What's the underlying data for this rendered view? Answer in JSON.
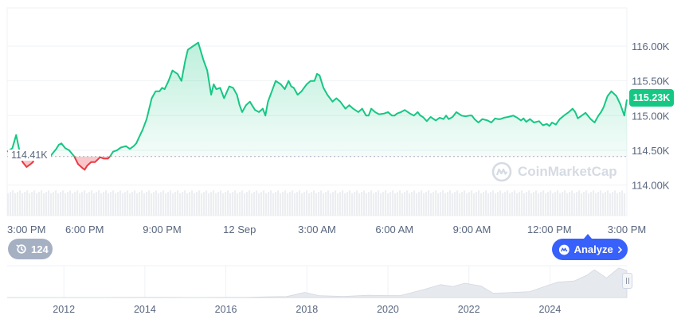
{
  "colors": {
    "up": "#16c784",
    "down": "#ea3943",
    "up_fill": "#16c784",
    "down_fill": "#ea3943",
    "grid": "#eff2f5",
    "axis_text": "#58667e",
    "volume": "#eceef1",
    "navigator_fill": "#e6e9ee",
    "accent": "#3861fb",
    "badge": "#a6b0c3",
    "watermark": "#d6dbe3"
  },
  "overlays": {
    "open_label": "114.41K",
    "current_label": "115.23K",
    "event_count": "124",
    "event_icon": "history-icon",
    "analyze_label": "Analyze",
    "analyze_icon": "coinmarketcap-logo-icon",
    "watermark": "CoinMarketCap"
  },
  "chart_data": [
    {
      "type": "line",
      "description_of_axes": "intraday price",
      "y_tick_labels": [
        "114.00K",
        "114.50K",
        "115.00K",
        "115.50K",
        "116.00K"
      ],
      "y_ticks": [
        114000,
        114500,
        115000,
        115500,
        116000
      ],
      "ylim": [
        113560,
        116550
      ],
      "x_tick_labels": [
        "3:00 PM",
        "6:00 PM",
        "9:00 PM",
        "12 Sep",
        "3:00 AM",
        "6:00 AM",
        "9:00 AM",
        "12:00 PM",
        "3:00 PM"
      ],
      "x_ticks": [
        0,
        3,
        6,
        9,
        12,
        15,
        18,
        21,
        24
      ],
      "x_unit": "hours from 3:00 PM",
      "baseline": 114410,
      "grid": true,
      "x": [
        0,
        0.2,
        0.35,
        0.5,
        0.6,
        0.75,
        0.9,
        1.0,
        1.1,
        1.25,
        1.4,
        1.6,
        1.75,
        1.9,
        2.0,
        2.1,
        2.25,
        2.4,
        2.6,
        2.75,
        2.9,
        3.0,
        3.1,
        3.25,
        3.4,
        3.6,
        3.75,
        3.9,
        4.0,
        4.1,
        4.25,
        4.4,
        4.6,
        4.75,
        4.9,
        5.0,
        5.1,
        5.25,
        5.4,
        5.6,
        5.75,
        5.9,
        6.0,
        6.1,
        6.25,
        6.4,
        6.6,
        6.75,
        6.9,
        7.0,
        7.2,
        7.4,
        7.6,
        7.75,
        7.9,
        8.0,
        8.1,
        8.25,
        8.4,
        8.6,
        8.75,
        8.9,
        9.0,
        9.1,
        9.25,
        9.4,
        9.6,
        9.75,
        9.9,
        10.0,
        10.1,
        10.25,
        10.4,
        10.6,
        10.75,
        10.9,
        11.0,
        11.1,
        11.25,
        11.4,
        11.6,
        11.75,
        11.9,
        12.0,
        12.1,
        12.25,
        12.4,
        12.6,
        12.75,
        12.9,
        13.0,
        13.1,
        13.25,
        13.4,
        13.6,
        13.75,
        13.9,
        14.0,
        14.1,
        14.25,
        14.4,
        14.6,
        14.75,
        14.9,
        15.0,
        15.1,
        15.25,
        15.4,
        15.6,
        15.75,
        15.9,
        16.0,
        16.1,
        16.25,
        16.4,
        16.6,
        16.75,
        16.9,
        17.0,
        17.1,
        17.25,
        17.4,
        17.6,
        17.75,
        17.9,
        18.0,
        18.1,
        18.25,
        18.4,
        18.6,
        18.75,
        18.9,
        19.0,
        19.1,
        19.25,
        19.4,
        19.6,
        19.75,
        19.9,
        20.0,
        20.1,
        20.25,
        20.4,
        20.6,
        20.75,
        20.9,
        21.0,
        21.1,
        21.25,
        21.4,
        21.6,
        21.75,
        21.9,
        22.0,
        22.1,
        22.25,
        22.4,
        22.6,
        22.75,
        22.9,
        23.0,
        23.1,
        23.25,
        23.4,
        23.6,
        23.75,
        23.9,
        24.0
      ],
      "y": [
        114480,
        114530,
        114720,
        114450,
        114330,
        114260,
        114300,
        114330,
        114500,
        114420,
        114400,
        114380,
        114450,
        114520,
        114580,
        114600,
        114530,
        114500,
        114410,
        114300,
        114250,
        114220,
        114280,
        114330,
        114330,
        114400,
        114380,
        114380,
        114420,
        114480,
        114500,
        114540,
        114560,
        114520,
        114560,
        114600,
        114680,
        114800,
        114950,
        115250,
        115350,
        115350,
        115400,
        115380,
        115500,
        115650,
        115600,
        115500,
        115800,
        115950,
        116000,
        116050,
        115800,
        115650,
        115300,
        115450,
        115380,
        115400,
        115250,
        115420,
        115400,
        115300,
        115150,
        115050,
        115150,
        115200,
        115080,
        115050,
        115100,
        115000,
        115200,
        115350,
        115500,
        115450,
        115380,
        115500,
        115420,
        115400,
        115300,
        115350,
        115450,
        115500,
        115500,
        115600,
        115580,
        115400,
        115300,
        115200,
        115250,
        115200,
        115150,
        115100,
        115150,
        115100,
        115050,
        115100,
        115000,
        115000,
        115100,
        115050,
        115020,
        115030,
        115050,
        115000,
        115000,
        115030,
        115050,
        115080,
        115030,
        115000,
        115050,
        115000,
        114980,
        114920,
        114980,
        114930,
        114970,
        114950,
        115000,
        114950,
        114980,
        115050,
        115000,
        114990,
        115000,
        115000,
        114950,
        114900,
        114950,
        114930,
        114900,
        114960,
        114950,
        114950,
        114970,
        114980,
        115000,
        114970,
        114930,
        114960,
        114910,
        114950,
        114900,
        114920,
        114860,
        114880,
        114850,
        114900,
        114870,
        114950,
        115010,
        115050,
        115100,
        115050,
        114960,
        115000,
        115040,
        114950,
        114900,
        115000,
        115050,
        115120,
        115280,
        115350,
        115280,
        115160,
        115000,
        115230
      ]
    },
    {
      "type": "area",
      "description_of_axes": "navigator history",
      "x_tick_labels": [
        "2012",
        "2014",
        "2016",
        "2018",
        "2020",
        "2022",
        "2024"
      ],
      "x_ticks": [
        2012,
        2014,
        2016,
        2018,
        2020,
        2022,
        2024
      ],
      "xlim": [
        2010.6,
        2025.9
      ],
      "ylim": [
        0,
        115000
      ],
      "x": [
        2010.6,
        2012,
        2013,
        2013.9,
        2014.5,
        2015,
        2016,
        2016.5,
        2017,
        2017.5,
        2017.95,
        2018.3,
        2018.9,
        2019.5,
        2019.9,
        2020.3,
        2020.9,
        2021.3,
        2021.6,
        2021.9,
        2022.3,
        2022.6,
        2022.9,
        2023.5,
        2024,
        2024.2,
        2024.6,
        2024.9,
        2025.1,
        2025.4,
        2025.7,
        2025.9
      ],
      "values": [
        0,
        5,
        200,
        800,
        500,
        250,
        430,
        650,
        2500,
        4500,
        18000,
        9000,
        3800,
        11000,
        7000,
        9000,
        28000,
        58000,
        38000,
        64000,
        40000,
        20000,
        16500,
        28000,
        45000,
        68000,
        60000,
        95000,
        105000,
        85000,
        112000,
        115000
      ]
    }
  ]
}
